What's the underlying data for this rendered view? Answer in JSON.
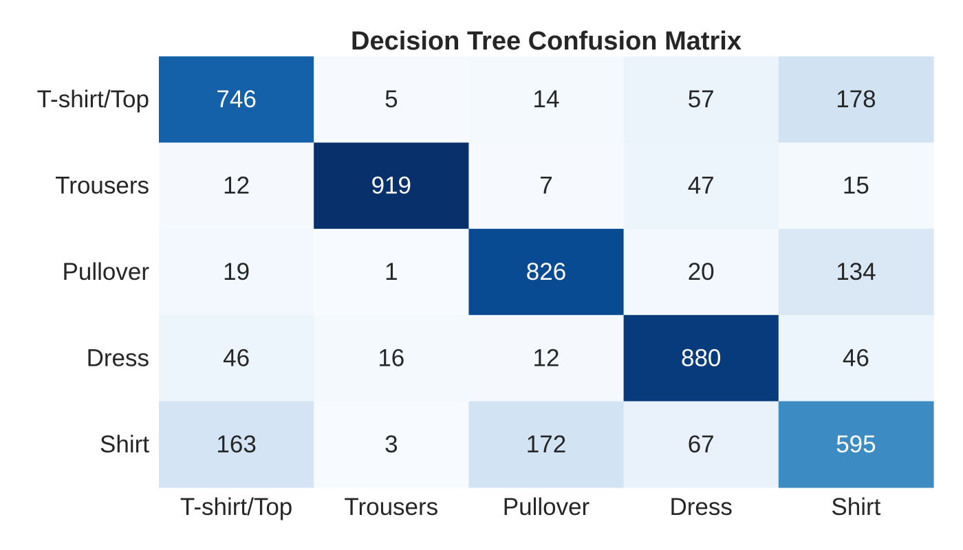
{
  "chart_data": {
    "type": "heatmap",
    "title": "Decision Tree Confusion Matrix",
    "xlabel": "",
    "ylabel": "",
    "x_categories": [
      "T-shirt/Top",
      "Trousers",
      "Pullover",
      "Dress",
      "Shirt"
    ],
    "y_categories": [
      "T-shirt/Top",
      "Trousers",
      "Pullover",
      "Dress",
      "Shirt"
    ],
    "values": [
      [
        746,
        5,
        14,
        57,
        178
      ],
      [
        12,
        919,
        7,
        47,
        15
      ],
      [
        19,
        1,
        826,
        20,
        134
      ],
      [
        46,
        16,
        12,
        880,
        46
      ],
      [
        163,
        3,
        172,
        67,
        595
      ]
    ],
    "colormap": "Blues",
    "color_range": [
      1,
      919
    ],
    "colorbar": false,
    "grid": false,
    "annotations": true
  },
  "colors": {
    "text_dark": "#262626",
    "text_light": "#ffffff"
  }
}
